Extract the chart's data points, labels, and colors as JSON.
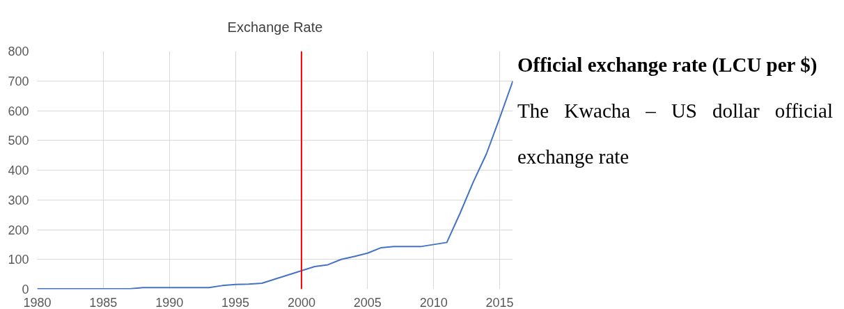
{
  "chart_data": {
    "type": "line",
    "title": "Exchange Rate",
    "x": [
      1980,
      1981,
      1982,
      1983,
      1984,
      1985,
      1986,
      1987,
      1988,
      1989,
      1990,
      1991,
      1992,
      1993,
      1994,
      1995,
      1996,
      1997,
      1998,
      1999,
      2000,
      2001,
      2002,
      2003,
      2004,
      2005,
      2006,
      2007,
      2008,
      2009,
      2010,
      2011,
      2012,
      2013,
      2014,
      2015,
      2016
    ],
    "series": [
      {
        "color": "#4472c4",
        "values": [
          1,
          1,
          1,
          1,
          1,
          1,
          1,
          1,
          5,
          5,
          5,
          5,
          5,
          5,
          12,
          16,
          17,
          20,
          34,
          48,
          62,
          76,
          82,
          100,
          110,
          121,
          139,
          143,
          143,
          143,
          150,
          157,
          255,
          360,
          455,
          575,
          700
        ]
      }
    ],
    "xlim": [
      1980,
      2016
    ],
    "xticks": [
      1980,
      1985,
      1990,
      1995,
      2000,
      2005,
      2010,
      2015
    ],
    "ylim": [
      0,
      800
    ],
    "yticks": [
      0,
      100,
      200,
      300,
      400,
      500,
      600,
      700,
      800
    ],
    "grid": true,
    "ref_lines": [
      {
        "axis": "x",
        "value": 2000,
        "color": "#ff0000"
      }
    ],
    "annotations": [
      "Official exchange rate (LCU per $)",
      "The Kwacha – US dollar official exchange rate"
    ]
  }
}
